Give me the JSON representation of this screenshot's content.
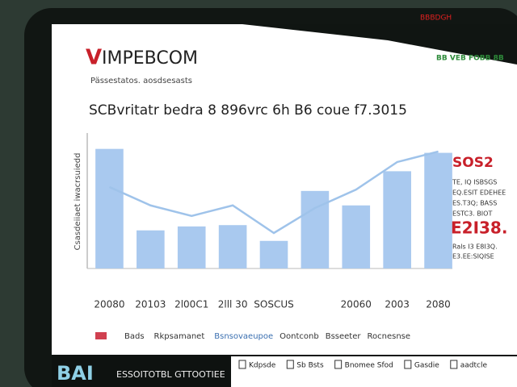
{
  "header": {
    "brand_initial": "V",
    "brand_rest": "IMPEBCOM",
    "subtitle": "Pässestatos. aosdsesasts",
    "top_right_red": "BBBDGH",
    "top_right_green": "BB VEB FOBB 8B"
  },
  "chart_data": {
    "type": "bar",
    "title": "SCBvritatr bedra 8 896vrc 6h B6 coue f7.3015",
    "y_label": "Csasdeiiaet iwacrsuiedd",
    "categories": [
      "20080",
      "20103",
      "2l00C1",
      "2lll 30",
      "SOSCUS",
      null,
      "20060",
      "2003",
      "2080"
    ],
    "ylim": [
      0,
      100
    ],
    "series": [
      {
        "name": "Bads",
        "color": "#a9c9ef",
        "values": [
          91,
          29,
          32,
          33,
          21,
          59,
          48,
          74,
          88
        ]
      },
      {
        "name": "Rkpsamanet",
        "type": "line",
        "color": "#9fc3ea",
        "values": [
          62,
          48,
          40,
          48,
          27,
          46,
          60,
          81,
          89
        ]
      }
    ],
    "legend_extra": [
      "Bsnsovaeupoe",
      "Oontconb",
      "Bsseeter",
      "Rocnesnse"
    ],
    "annotations": {
      "headline": "SOS2",
      "lines_a": [
        "TE, IQ ISBSGS",
        "EQ.ESIT EDEHEE",
        "ES.T3Q; BASS",
        "ESTC3. BIOT"
      ],
      "figure": "E2I38.",
      "lines_b": [
        "Rals I3 E8I3Q.",
        "E3.EE:SIQISE"
      ]
    }
  },
  "footer": {
    "logo": "BAI",
    "label": "ESSOITOTBL GTTOOTIEE",
    "items": [
      "Kdpsde",
      "Sb Bsts",
      "Bnomee Sfod",
      "Gasdie",
      "aadtcle"
    ]
  }
}
